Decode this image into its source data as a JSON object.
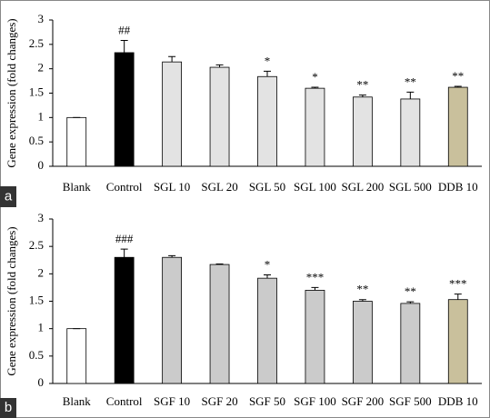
{
  "chart_data": [
    {
      "type": "bar",
      "panel_label": "a",
      "ylabel": "Gene expression (fold changes)",
      "categories": [
        "Blank",
        "Control",
        "SGL 10",
        "SGL 20",
        "SGL 50",
        "SGL 100",
        "SGL 200",
        "SGL 500",
        "DDB 10"
      ],
      "values": [
        1.0,
        2.33,
        2.14,
        2.03,
        1.84,
        1.6,
        1.42,
        1.38,
        1.62
      ],
      "errors": [
        0,
        0.25,
        0.11,
        0.05,
        0.11,
        0.02,
        0.04,
        0.14,
        0.02
      ],
      "annotations": [
        null,
        "##",
        null,
        null,
        "*",
        "*",
        "**",
        "**",
        "**"
      ],
      "colors": [
        "#ffffff",
        "#000000",
        "#e3e3e3",
        "#e3e3e3",
        "#e3e3e3",
        "#e3e3e3",
        "#e3e3e3",
        "#e3e3e3",
        "#c9c09c"
      ],
      "ylim": [
        0,
        3
      ],
      "yticks": [
        0,
        0.5,
        1,
        1.5,
        2,
        2.5,
        3
      ]
    },
    {
      "type": "bar",
      "panel_label": "b",
      "ylabel": "Gene expression (fold changes)",
      "categories": [
        "Blank",
        "Control",
        "SGF 10",
        "SGF 20",
        "SGF 50",
        "SGF 100",
        "SGF 200",
        "SGF 500",
        "DDB 10"
      ],
      "values": [
        1.0,
        2.3,
        2.3,
        2.17,
        1.92,
        1.7,
        1.5,
        1.46,
        1.53
      ],
      "errors": [
        0,
        0.15,
        0.03,
        0.01,
        0.06,
        0.05,
        0.03,
        0.03,
        0.1
      ],
      "annotations": [
        null,
        "###",
        null,
        null,
        "*",
        "***",
        "**",
        "**",
        "***"
      ],
      "colors": [
        "#ffffff",
        "#000000",
        "#cbcbcb",
        "#cbcbcb",
        "#cbcbcb",
        "#cbcbcb",
        "#cbcbcb",
        "#cbcbcb",
        "#c9c09c"
      ],
      "ylim": [
        0,
        3
      ],
      "yticks": [
        0,
        0.5,
        1,
        1.5,
        2,
        2.5,
        3
      ]
    }
  ]
}
